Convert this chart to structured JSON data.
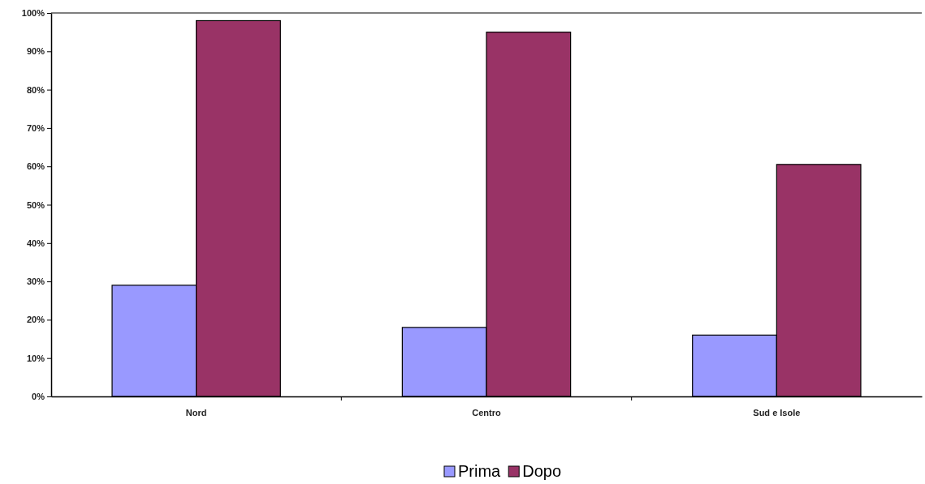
{
  "chart_data": {
    "type": "bar",
    "categories": [
      "Nord",
      "Centro",
      "Sud e Isole"
    ],
    "series": [
      {
        "name": "Prima",
        "color": "#9999ff",
        "values": [
          29,
          18,
          16
        ]
      },
      {
        "name": "Dopo",
        "color": "#993366",
        "values": [
          98,
          95,
          60.5
        ]
      }
    ],
    "ylim": [
      0,
      100
    ],
    "yticks": [
      {
        "value": 0,
        "label": "0%"
      },
      {
        "value": 10,
        "label": "10%"
      },
      {
        "value": 20,
        "label": "20%"
      },
      {
        "value": 30,
        "label": "30%"
      },
      {
        "value": 40,
        "label": "40%"
      },
      {
        "value": 50,
        "label": "50%"
      },
      {
        "value": 60,
        "label": "60%"
      },
      {
        "value": 70,
        "label": "70%"
      },
      {
        "value": 80,
        "label": "80%"
      },
      {
        "value": 90,
        "label": "90%"
      },
      {
        "value": 100,
        "label": "100%"
      }
    ],
    "grid": false,
    "legend": "bottom"
  }
}
